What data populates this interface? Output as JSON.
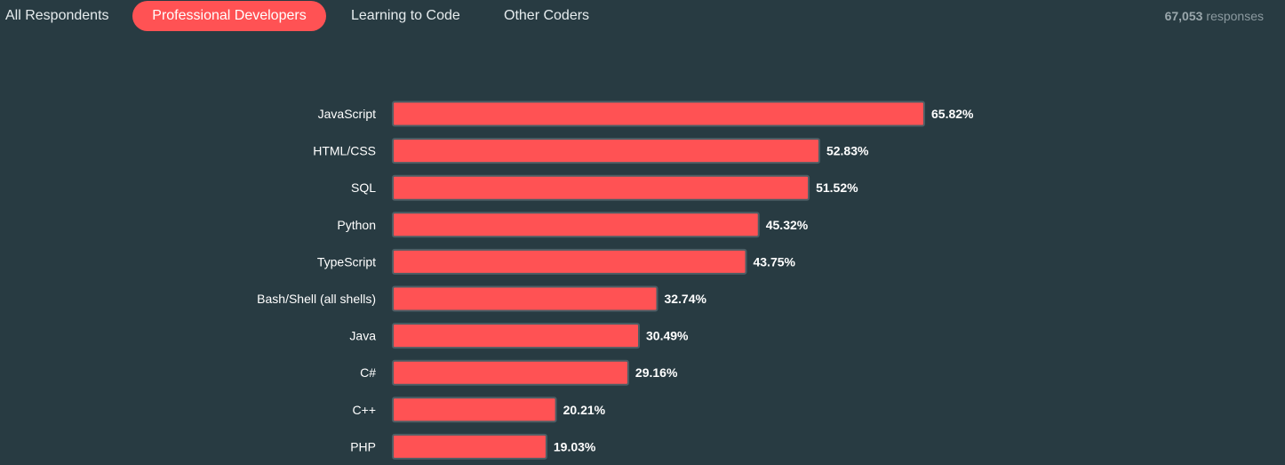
{
  "tabs": [
    {
      "label": "All Respondents",
      "active": false
    },
    {
      "label": "Professional Developers",
      "active": true
    },
    {
      "label": "Learning to Code",
      "active": false
    },
    {
      "label": "Other Coders",
      "active": false
    }
  ],
  "responses": {
    "count": "67,053",
    "label": "responses"
  },
  "colors": {
    "background": "#283b42",
    "bar": "#ff5254",
    "bar_border": "#4d5e65",
    "active_tab": "#ff5254"
  },
  "chart_data": {
    "type": "bar",
    "orientation": "horizontal",
    "categories": [
      "JavaScript",
      "HTML/CSS",
      "SQL",
      "Python",
      "TypeScript",
      "Bash/Shell (all shells)",
      "Java",
      "C#",
      "C++",
      "PHP"
    ],
    "values": [
      65.82,
      52.83,
      51.52,
      45.32,
      43.75,
      32.74,
      30.49,
      29.16,
      20.21,
      19.03
    ],
    "value_labels": [
      "65.82%",
      "52.83%",
      "51.52%",
      "45.32%",
      "43.75%",
      "32.74%",
      "30.49%",
      "29.16%",
      "20.21%",
      "19.03%"
    ],
    "unit": "%",
    "grid": false,
    "legend": "none"
  }
}
